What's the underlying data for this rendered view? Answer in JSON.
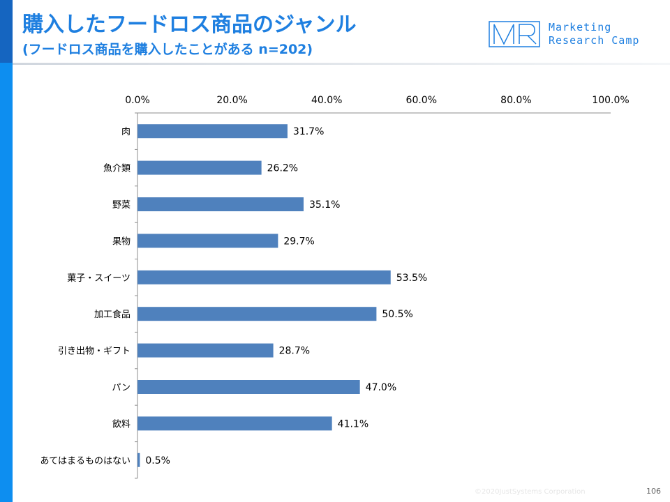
{
  "header": {
    "title": "購入したフードロス商品のジャンル",
    "subtitle": "(フードロス商品を購入したことがある n=202)"
  },
  "logo": {
    "mark_icon": "mr-logo-mark",
    "line1": "Marketing",
    "line2": "Research Camp"
  },
  "footer": {
    "copyright": "©2020JustSystems Corporation",
    "page_number": "106"
  },
  "colors": {
    "accent": "#1e7fe0",
    "bar": "#4f81bd"
  },
  "chart_data": {
    "type": "bar",
    "orientation": "horizontal",
    "categories": [
      "肉",
      "魚介類",
      "野菜",
      "果物",
      "菓子・スイーツ",
      "加工食品",
      "引き出物・ギフト",
      "パン",
      "飲料",
      "あてはまるものはない"
    ],
    "values": [
      31.7,
      26.2,
      35.1,
      29.7,
      53.5,
      50.5,
      28.7,
      47.0,
      41.1,
      0.5
    ],
    "value_labels": [
      "31.7%",
      "26.2%",
      "35.1%",
      "29.7%",
      "53.5%",
      "50.5%",
      "28.7%",
      "47.0%",
      "41.1%",
      "0.5%"
    ],
    "x_ticks": [
      "0.0%",
      "20.0%",
      "40.0%",
      "60.0%",
      "80.0%",
      "100.0%"
    ],
    "xlim": [
      0,
      100
    ],
    "axis_position": "top",
    "grid": false,
    "legend": "none"
  }
}
